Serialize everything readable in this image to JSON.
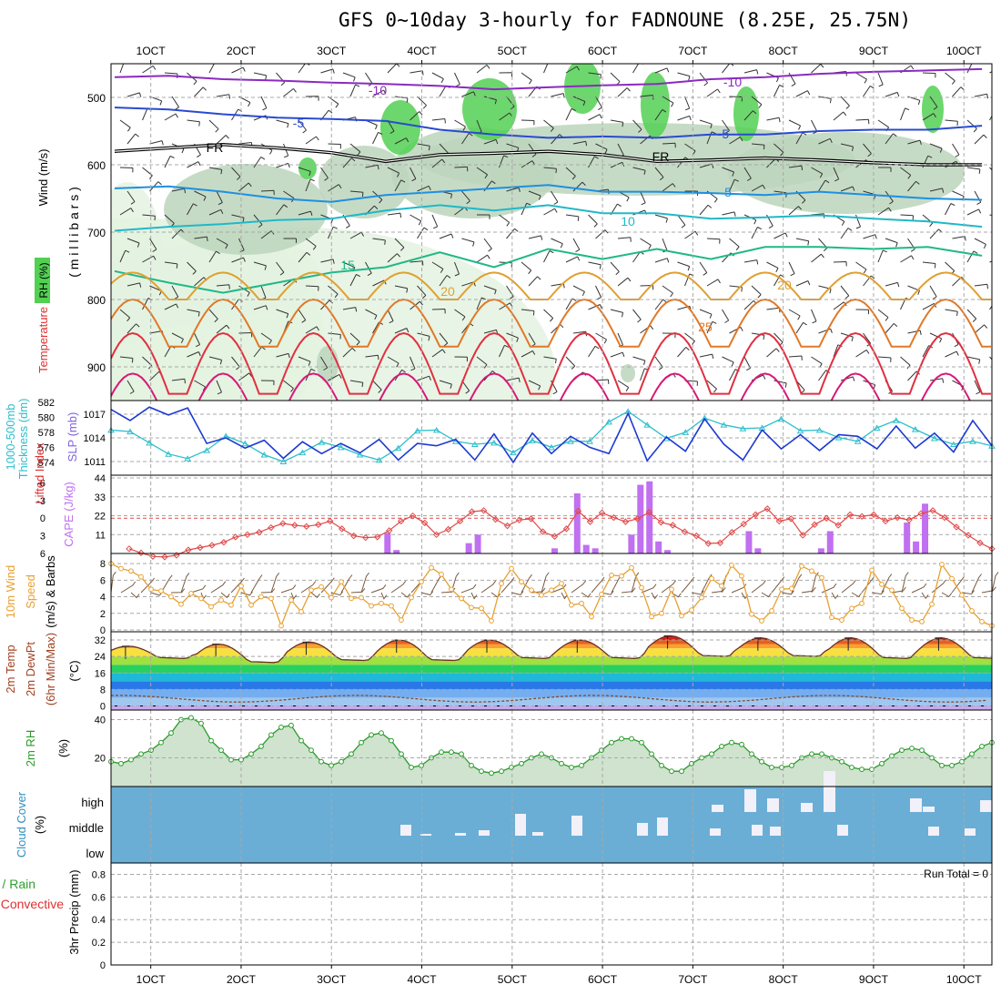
{
  "title": "GFS 0~10day 3-hourly for FADNOUNE (8.25E, 25.75N)",
  "time_axis": {
    "tick_labels": [
      "1OCT",
      "2OCT",
      "3OCT",
      "4OCT",
      "5OCT",
      "6OCT",
      "7OCT",
      "8OCT",
      "9OCT",
      "10OCT"
    ],
    "start_day": 0.56,
    "end_day": 10.31
  },
  "colors": {
    "grid": "#a8a8a8",
    "rh_green_light": "#e4f2e0",
    "rh_green_mid": "#bcd5bc",
    "rh_green_dark": "#9fb59f",
    "rh_green_bright": "#52d052",
    "thickness_line": "#2ebfcc",
    "slp_line": "#1c3ad0",
    "lifted_index": "#e04848",
    "cape_bar": "#c070f0",
    "wind_speed": "#e8a030",
    "wind_barb": "#7a5a40",
    "rh2m_line": "#2a9a2a",
    "rh2m_fill": "#cfe3cf",
    "cloud_bg": "#6aaed6",
    "cloud_fill": "#f2f0f8"
  },
  "panels": {
    "upper": {
      "labels": {
        "wind": "Wind (m/s)",
        "temp": "Temperature (°C)",
        "rh": "RH (%)",
        "pressure": "( m i l l i b a r s )"
      },
      "ytick_labels": [
        "500",
        "600",
        "700",
        "800",
        "900"
      ],
      "fr_label": "FR"
    },
    "slp": {
      "labels": {
        "thk1": "1000-500mb",
        "thk2": "Thickness (dm)",
        "slp": "SLP (mb)"
      },
      "left_ticks": [
        "582",
        "580",
        "578",
        "576",
        "574"
      ],
      "right_ticks": [
        "1017",
        "1014",
        "1011"
      ]
    },
    "cape": {
      "labels": {
        "li": "Lifted Index",
        "cape": "CAPE (J/kg)"
      },
      "left_ticks": [
        "-6",
        "-3",
        "0",
        "3",
        "6"
      ],
      "right_ticks": [
        "44",
        "33",
        "22",
        "11"
      ]
    },
    "wind10": {
      "labels": {
        "l1": "10m Wind",
        "l2": "Speed",
        "l3": "(m/s) & Barbs"
      },
      "ticks": [
        "8",
        "6",
        "4",
        "2",
        "0"
      ]
    },
    "temp2m": {
      "labels": {
        "l1": "2m Temp",
        "l2": "2m DewPt",
        "l3": "(6hr Min/Max)",
        "unit": "(°C)"
      },
      "ticks": [
        "32",
        "24",
        "16",
        "8",
        "0"
      ]
    },
    "rh2m": {
      "labels": {
        "l1": "2m RH",
        "unit": "(%)"
      },
      "ticks": [
        "40",
        "20"
      ]
    },
    "cloud": {
      "labels": {
        "l1": "Cloud Cover",
        "unit": "(%)"
      },
      "ticks": [
        "high",
        "middle",
        "low"
      ]
    },
    "precip": {
      "labels": {
        "total": "Total / Rain",
        "conv": "Convective",
        "l3": "3hr Precip (mm)"
      },
      "ticks": [
        "0.8",
        "0.6",
        "0.4",
        "0.2",
        "0"
      ],
      "run_total": "Run Total = 0"
    }
  },
  "chart_data": [
    {
      "type": "line",
      "name": "upper_air_cross_section",
      "ylabel": "( m i l l i b a r s )",
      "y_axis": "pressure (mb), inverted",
      "ylim": [
        950,
        450
      ],
      "x": [
        0.6,
        1.2,
        1.8,
        2.4,
        3.0,
        3.6,
        4.2,
        4.8,
        5.4,
        6.0,
        6.6,
        7.2,
        7.8,
        8.4,
        9.0,
        9.6,
        10.2
      ],
      "isotherm_labels": [
        "-10",
        "-5",
        "FR",
        "5",
        "10",
        "15",
        "20",
        "25"
      ],
      "series": [
        {
          "name": "-10",
          "values": [
            470,
            468,
            473,
            475,
            478,
            480,
            483,
            488,
            485,
            482,
            480,
            473,
            470,
            465,
            462,
            460,
            458
          ]
        },
        {
          "name": "-5",
          "values": [
            515,
            518,
            525,
            530,
            532,
            535,
            548,
            555,
            560,
            558,
            560,
            555,
            555,
            550,
            548,
            548,
            542
          ]
        },
        {
          "name": "FR",
          "values": [
            580,
            575,
            570,
            575,
            582,
            595,
            585,
            583,
            580,
            585,
            595,
            593,
            590,
            593,
            597,
            600,
            600
          ]
        },
        {
          "name": "5",
          "values": [
            635,
            632,
            640,
            650,
            655,
            645,
            640,
            635,
            630,
            640,
            640,
            642,
            645,
            640,
            645,
            650,
            652
          ]
        },
        {
          "name": "10",
          "values": [
            698,
            692,
            688,
            682,
            680,
            668,
            660,
            668,
            660,
            672,
            672,
            680,
            678,
            675,
            680,
            684,
            692
          ]
        },
        {
          "name": "15",
          "values": [
            758,
            775,
            790,
            775,
            760,
            752,
            730,
            752,
            725,
            740,
            725,
            740,
            722,
            722,
            725,
            722,
            735
          ]
        }
      ]
    },
    {
      "type": "line",
      "name": "slp_thickness",
      "x_step_hours": 3,
      "series": [
        {
          "name": "SLP (mb)",
          "values": [
            1017.6,
            1016.2,
            1017.9,
            1016.9,
            1017.8,
            1013.3,
            1014.0,
            1012.7,
            1013.7,
            1011.4,
            1013.5,
            1012.0,
            1013.3,
            1012.1,
            1013.8,
            1011.2,
            1013.3,
            1013.0,
            1013.8,
            1011.2,
            1014.5,
            1010.9,
            1014.6,
            1012.0,
            1014.2,
            1012.8,
            1012.0,
            1017.1,
            1011.1,
            1014.1,
            1012.3,
            1016.4,
            1013.2,
            1011.2,
            1015.0,
            1012.6,
            1014.4,
            1012.4,
            1014.4,
            1014.2,
            1012.6,
            1015.5,
            1012.7,
            1014.6,
            1012.2,
            1016.2,
            1013.0
          ]
        },
        {
          "name": "1000-500mb Thickness (dm)",
          "values": [
            578.3,
            578.1,
            576.6,
            575.1,
            574.5,
            575.6,
            577.5,
            576.5,
            575.0,
            574.1,
            575.3,
            576.7,
            576.0,
            575.0,
            574.3,
            575.9,
            578.2,
            578.3,
            576.8,
            576.4,
            576.6,
            575.3,
            576.9,
            576.0,
            576.8,
            576.8,
            579.4,
            580.8,
            579.0,
            577.2,
            578.0,
            579.9,
            579.0,
            578.5,
            578.6,
            579.8,
            578.2,
            578.3,
            577.3,
            576.8,
            578.6,
            579.6,
            578.4,
            577.2,
            576.4,
            576.8,
            576.2
          ]
        }
      ]
    },
    {
      "type": "bar",
      "name": "cape_lifted_index",
      "lifted_index": [
        5.2,
        5.9,
        6.5,
        6.6,
        6.3,
        5.4,
        5.0,
        4.6,
        4.1,
        3.2,
        2.8,
        2.4,
        1.6,
        0.9,
        1.2,
        1.4,
        1.1,
        0.5,
        1.8,
        3.0,
        3.3,
        3.2,
        2.1,
        0.5,
        -0.4,
        0.8,
        2.8,
        1.9,
        0.5,
        -1.1,
        -1.3,
        0.2,
        1.3,
        0.3,
        0.1,
        2.3,
        3.1,
        1.8,
        -1.2,
        0.6,
        -0.9,
        -0.1,
        0.6,
        0.1,
        -1.0,
        0.7,
        1.2,
        2.3,
        3.0,
        4.3,
        4.2,
        2.4,
        1.0,
        -0.6,
        -1.6,
        0.5,
        0.1,
        2.9,
        1.1,
        0.0,
        1.2,
        -0.6,
        -0.3,
        -0.6,
        0.5,
        -0.1,
        0.3,
        -0.8,
        -1.3,
        -0.1,
        1.5,
        2.9,
        4.2,
        5.2
      ],
      "cape_days": [
        3.62,
        3.72,
        4.52,
        4.62,
        5.47,
        5.72,
        5.82,
        5.92,
        6.32,
        6.42,
        6.52,
        6.62,
        6.72,
        7.62,
        7.72,
        8.42,
        8.52,
        9.37,
        9.47,
        9.57,
        9.67
      ],
      "cape_values": [
        12,
        2,
        6,
        11,
        3,
        35,
        5,
        3,
        11,
        40,
        42,
        7,
        2,
        13,
        3,
        3,
        13,
        18,
        7,
        29,
        0
      ]
    },
    {
      "type": "line",
      "name": "wind10m_speed",
      "ylabel": "(m/s)",
      "ylim": [
        0,
        9
      ],
      "values": [
        8.0,
        7.4,
        7.1,
        6.4,
        4.9,
        4.7,
        4.0,
        3.1,
        4.4,
        3.8,
        2.8,
        3.6,
        3.0,
        5.3,
        3.0,
        4.0,
        3.8,
        0.5,
        3.6,
        2.2,
        4.8,
        5.2,
        3.9,
        5.8,
        3.8,
        3.9,
        2.9,
        3.2,
        2.9,
        1.2,
        3.9,
        5.8,
        7.5,
        6.7,
        4.9,
        3.8,
        2.7,
        2.6,
        1.1,
        5.6,
        7.4,
        5.8,
        4.8,
        4.2,
        4.8,
        5.6,
        3.0,
        3.2,
        1.6,
        4.3,
        6.6,
        6.5,
        7.5,
        5.1,
        1.6,
        2.0,
        4.9,
        1.7,
        2.4,
        3.9,
        6.2,
        5.3,
        7.8,
        6.5,
        1.9,
        1.1,
        2.3,
        4.9,
        5.0,
        7.7,
        7.1,
        6.3,
        1.5,
        1.2,
        2.6,
        3.2,
        7.2,
        5.5,
        4.8,
        2.6,
        1.2,
        1.0,
        3.1,
        7.9,
        6.2,
        4.2,
        2.3,
        1.0,
        0.5
      ]
    },
    {
      "type": "area",
      "name": "temp2m",
      "ylabel": "(°C)",
      "ylim": [
        -2,
        36
      ],
      "min_temps": [
        23,
        21,
        22,
        22,
        23,
        23,
        24,
        24,
        23,
        23
      ],
      "max_temps": [
        29,
        30,
        31,
        32,
        32,
        32,
        34,
        33,
        33,
        33
      ],
      "dewpoint_mean": 3.5
    },
    {
      "type": "line",
      "name": "rh2m",
      "ylabel": "(%)",
      "ylim": [
        5,
        45
      ],
      "values": [
        18,
        17,
        19,
        22,
        24,
        28,
        33,
        40,
        41,
        38,
        29,
        24,
        19,
        19,
        22,
        26,
        32,
        36,
        37,
        29,
        24,
        18,
        16,
        18,
        22,
        28,
        32,
        33,
        29,
        22,
        15,
        16,
        20,
        23,
        23,
        22,
        16,
        13,
        12,
        13,
        15,
        17,
        20,
        22,
        20,
        17,
        15,
        16,
        20,
        24,
        28,
        30,
        30,
        28,
        22,
        16,
        13,
        13,
        17,
        20,
        22,
        26,
        28,
        27,
        22,
        18,
        15,
        15,
        16,
        20,
        22,
        22,
        20,
        18,
        15,
        14,
        14,
        17,
        21,
        24,
        25,
        24,
        20,
        16,
        16,
        18,
        22,
        26,
        28
      ]
    }
  ]
}
